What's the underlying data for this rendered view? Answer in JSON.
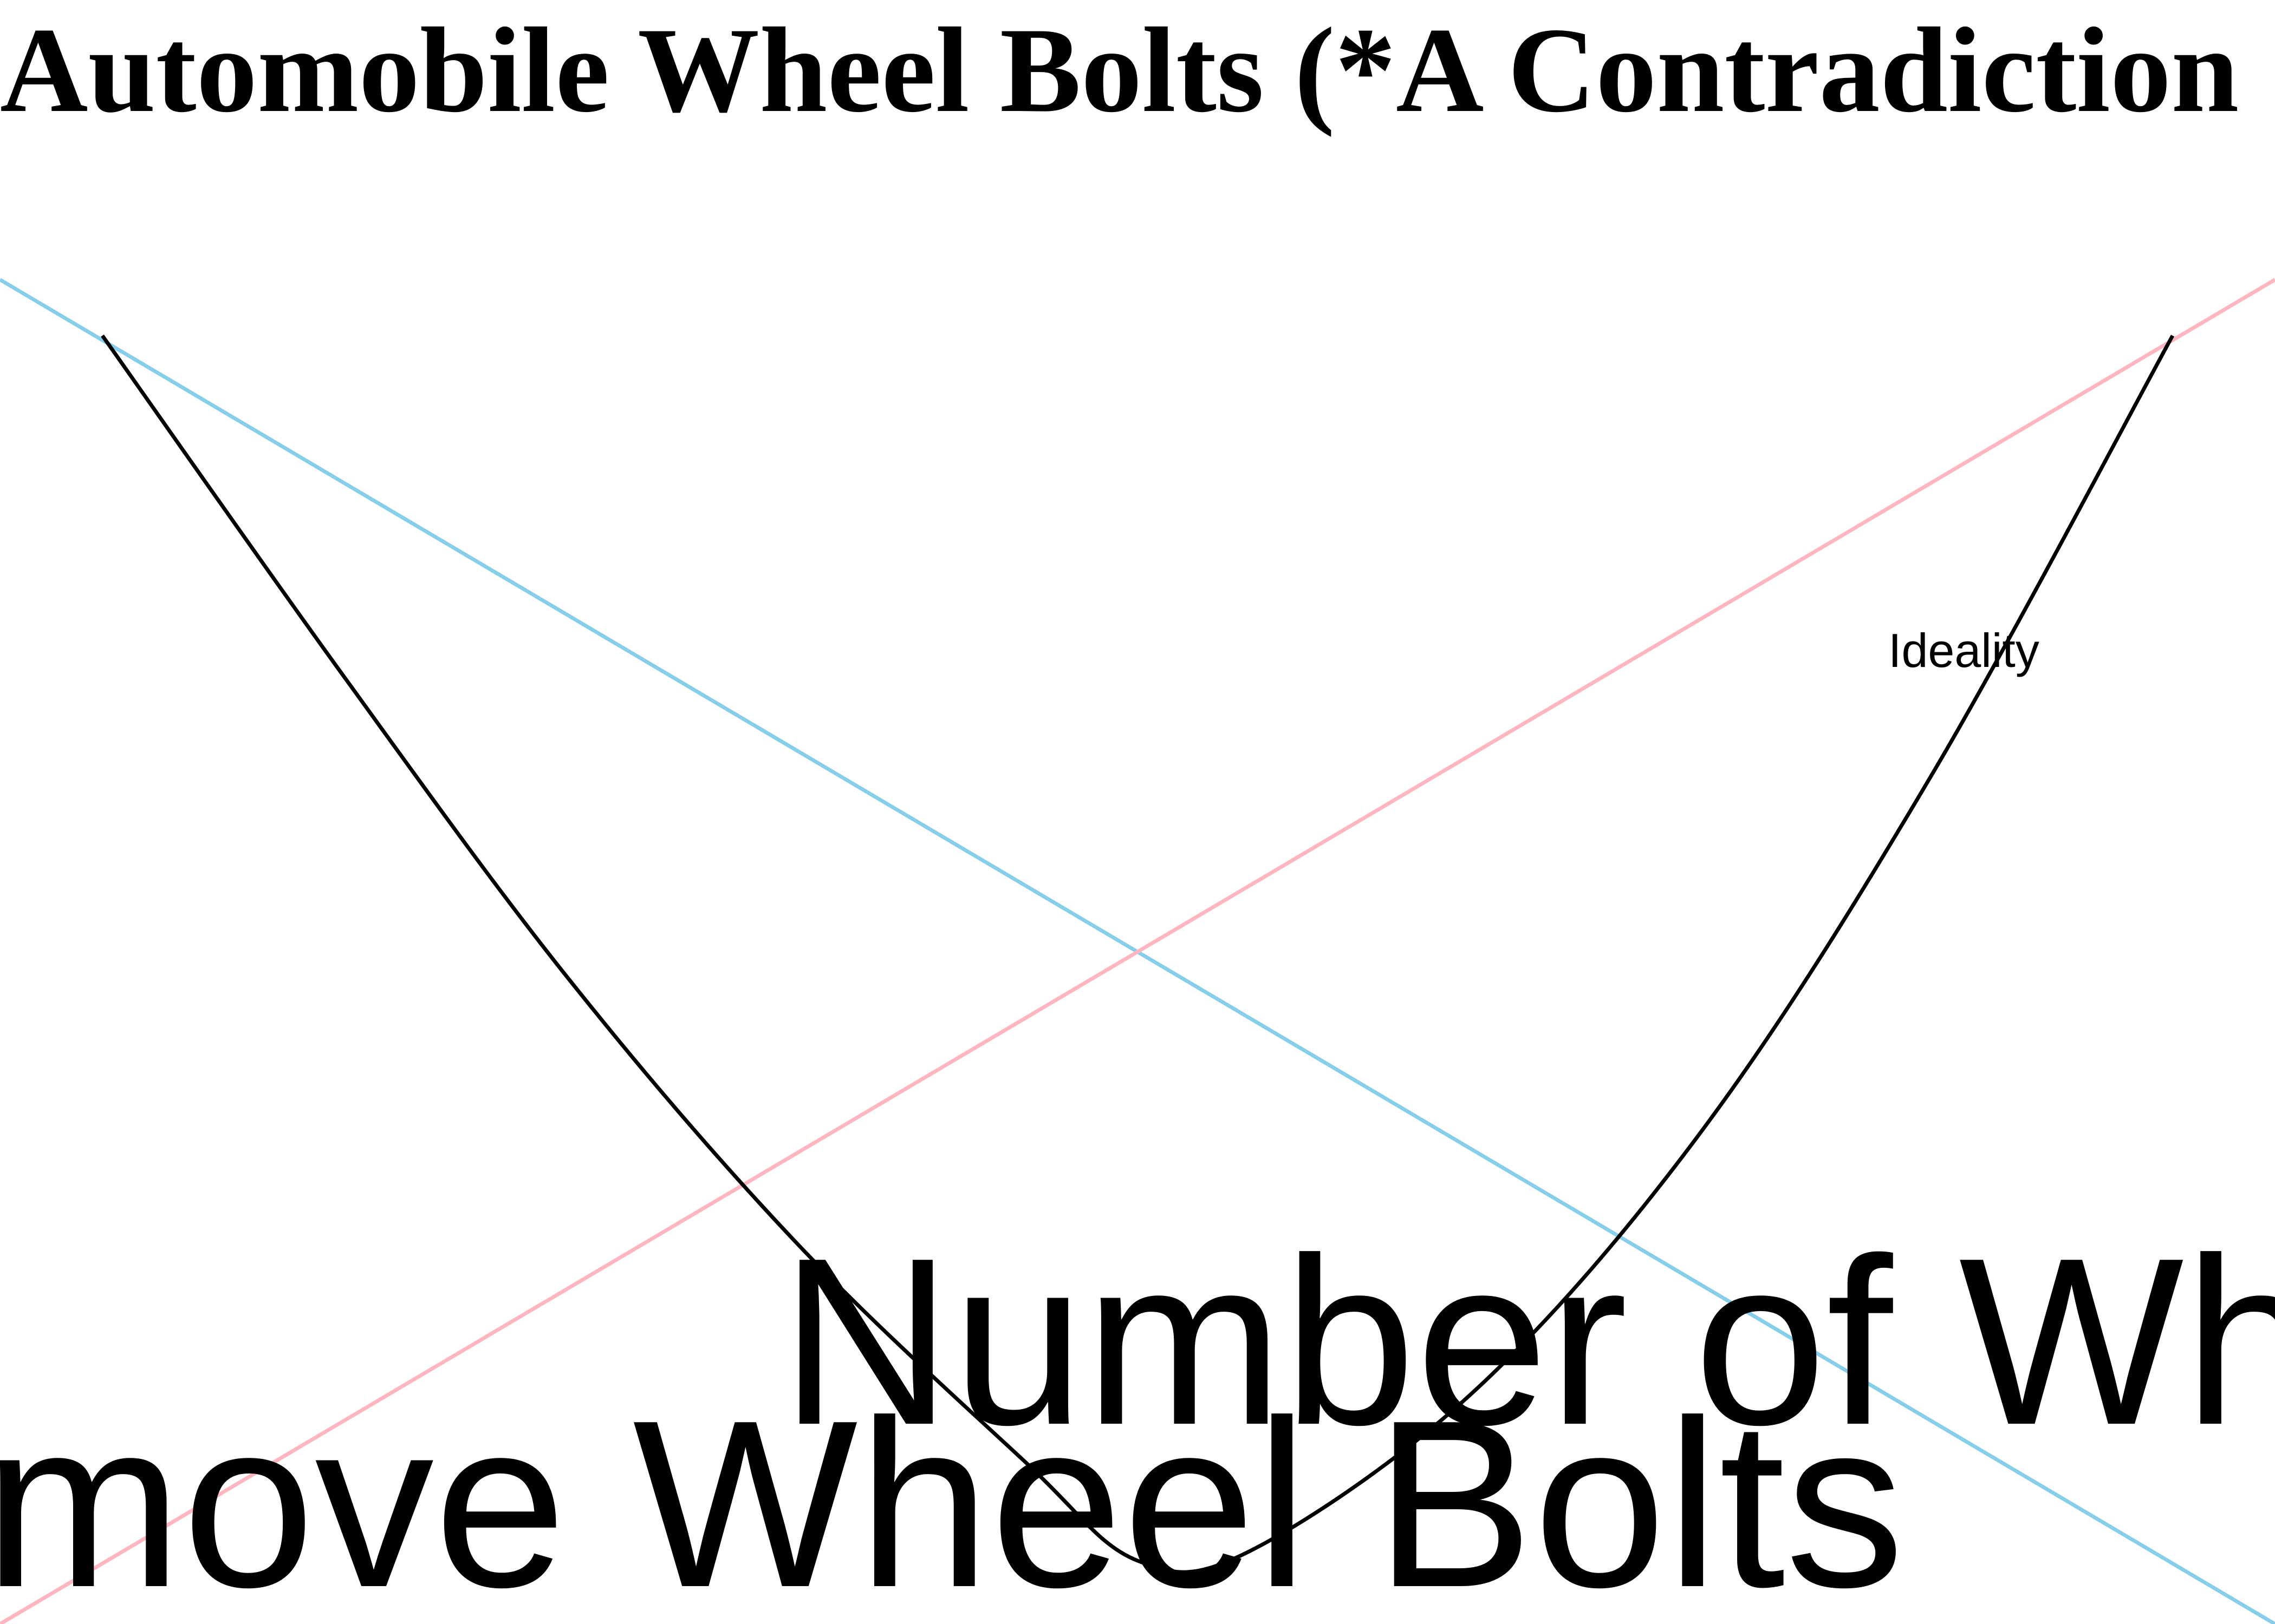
{
  "chart_data": {
    "type": "line",
    "title": "Automobile Wheel Bolts (*A Contradiction",
    "xlabel": "Number of Wh",
    "ylabel": "",
    "label_lower": "move Wheel Bolts",
    "xlim": [
      0,
      10
    ],
    "ylim": [
      0,
      10
    ],
    "grid": false,
    "legend": "none",
    "series": [
      {
        "name": "",
        "color": "#87ceeb",
        "x": [
          0,
          10
        ],
        "y": [
          9.13,
          0
        ]
      },
      {
        "name": "",
        "color": "#ffb6c1",
        "x": [
          0,
          10
        ],
        "y": [
          0,
          9.13
        ]
      },
      {
        "name": "Ideality",
        "color": "#000000",
        "x": [
          0.45,
          1.5,
          2.5,
          3.5,
          4.5,
          5.0,
          5.5,
          6.5,
          7.5,
          8.5,
          9.55
        ],
        "y": [
          8.75,
          6.46,
          4.38,
          2.59,
          1.11,
          0.43,
          0.5,
          1.61,
          3.39,
          5.79,
          8.75
        ]
      }
    ],
    "annotations": [
      {
        "text": "Ideality",
        "x": 8.3,
        "y": 6.5
      }
    ]
  }
}
